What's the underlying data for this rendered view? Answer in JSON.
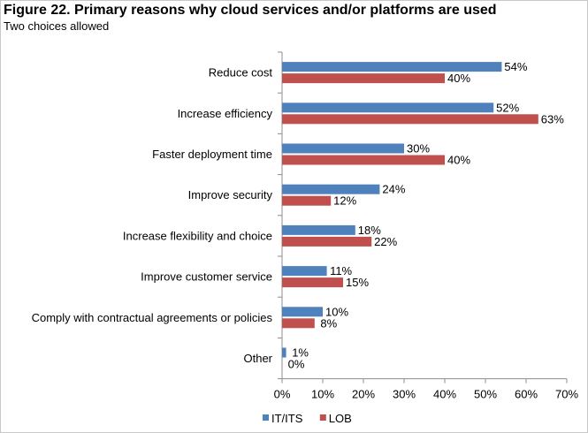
{
  "header": {
    "title": "Figure 22. Primary reasons why cloud services and/or platforms are used",
    "subtitle": "Two choices allowed"
  },
  "chart_data": {
    "type": "bar",
    "orientation": "horizontal",
    "title": "Figure 22. Primary reasons why cloud services and/or platforms are used",
    "subtitle": "Two choices allowed",
    "categories": [
      "Reduce cost",
      "Increase efficiency",
      "Faster deployment time",
      "Improve security",
      "Increase flexibility and choice",
      "Improve customer service",
      "Comply with contractual agreements or policies",
      "Other"
    ],
    "series": [
      {
        "name": "IT/ITS",
        "color": "#4f81bd",
        "values": [
          54,
          52,
          30,
          24,
          18,
          11,
          10,
          1
        ]
      },
      {
        "name": "LOB",
        "color": "#c0504d",
        "values": [
          40,
          63,
          40,
          12,
          22,
          15,
          8,
          0
        ]
      }
    ],
    "xlim": [
      0,
      70
    ],
    "xticks": [
      0,
      10,
      20,
      30,
      40,
      50,
      60,
      70
    ],
    "tick_suffix": "%",
    "value_suffix": "%",
    "xlabel": "",
    "ylabel": "",
    "grid": false,
    "legend_position": "bottom-center"
  }
}
